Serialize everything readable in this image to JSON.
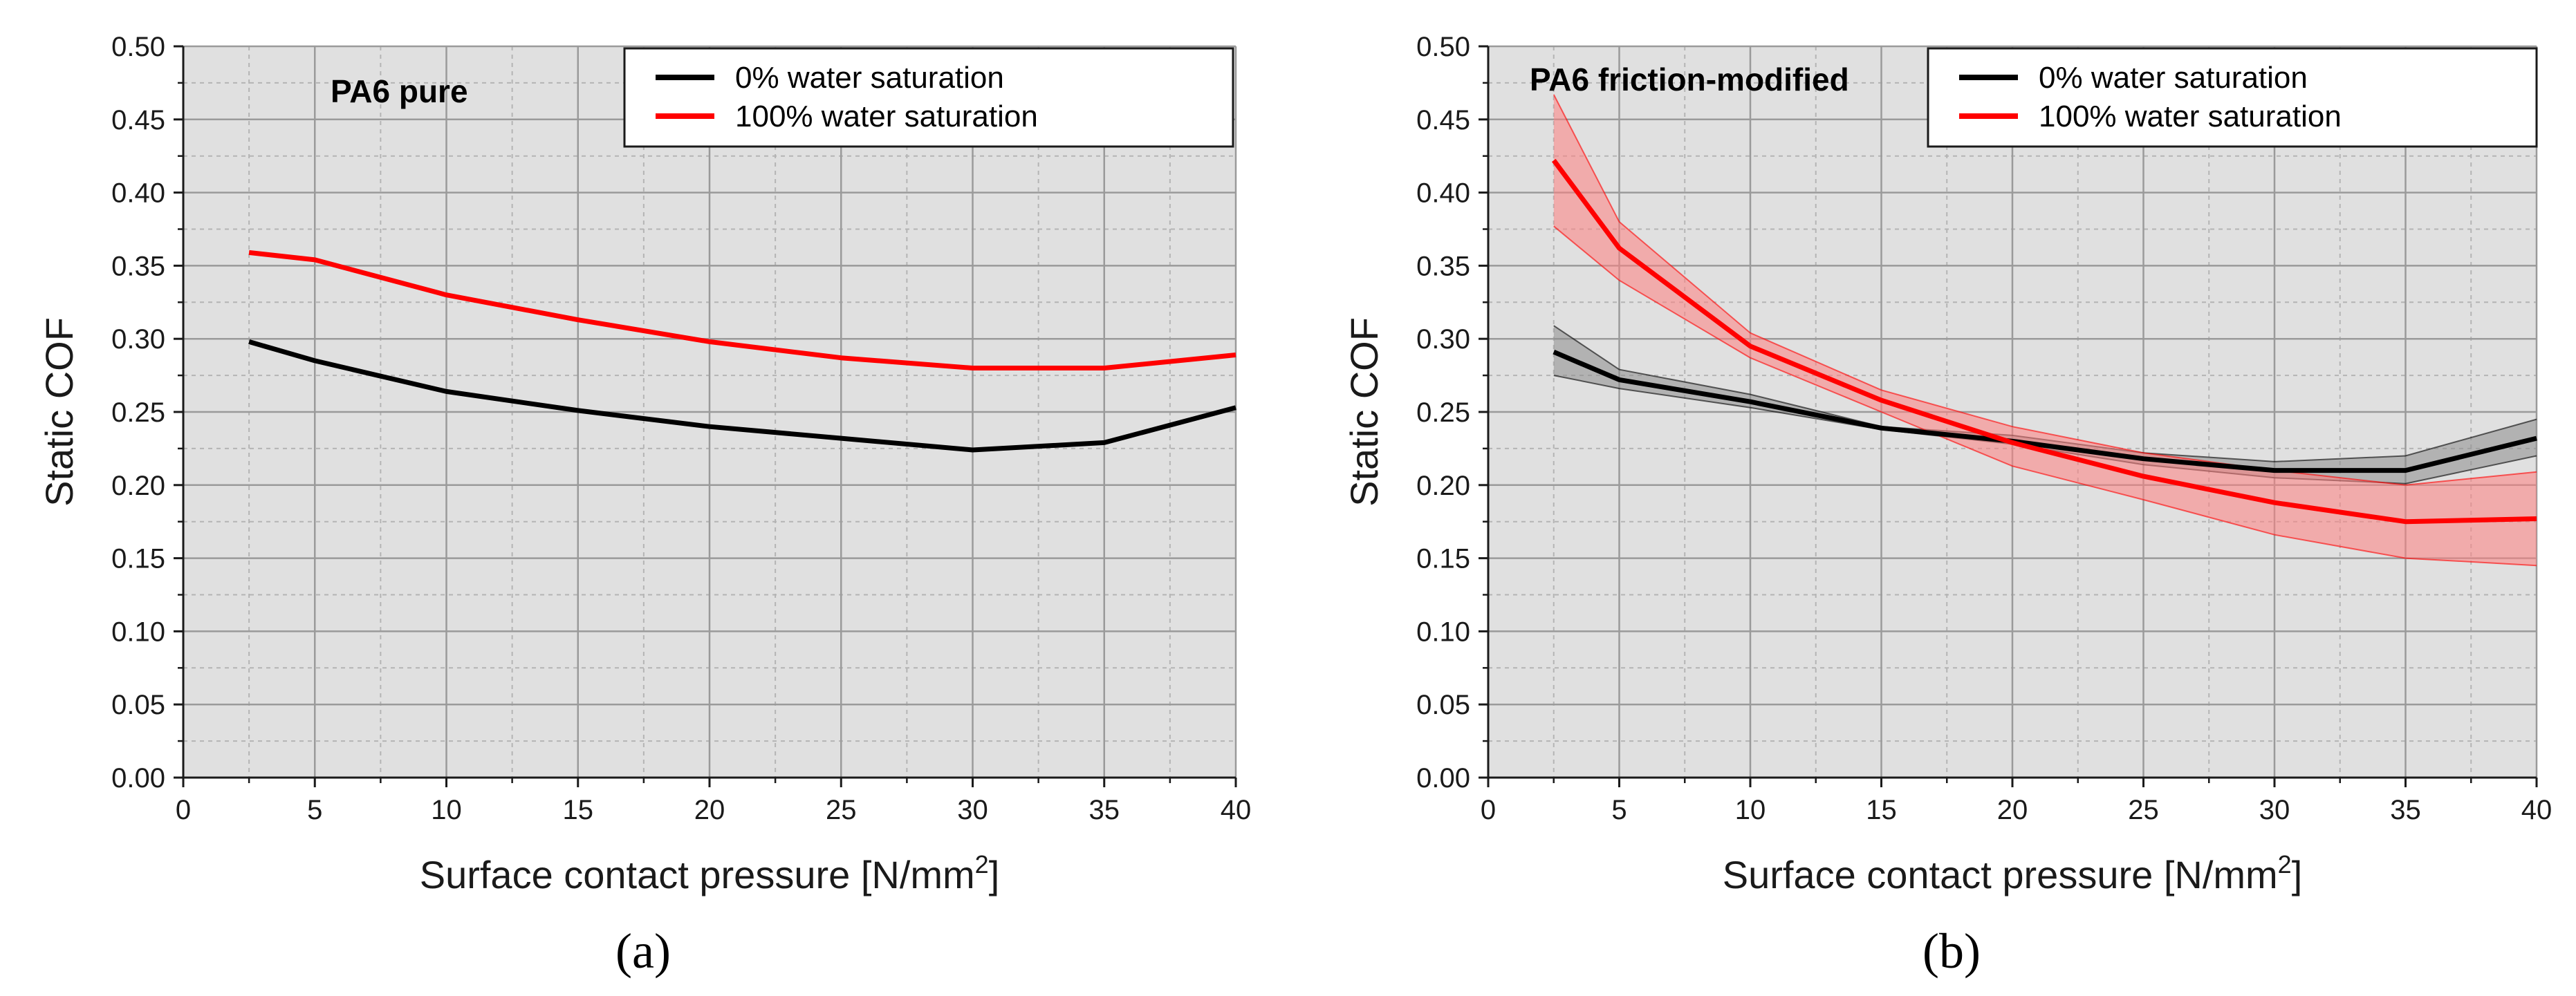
{
  "chart_data": [
    {
      "type": "line",
      "panel_label": "(a)",
      "title": "PA6 pure",
      "xlabel": "Surface contact pressure [N/mm",
      "xlabel_sup": "2",
      "xlabel_end": "]",
      "ylabel": "Static COF",
      "xlim": [
        0,
        40
      ],
      "ylim": [
        0,
        0.5
      ],
      "x_ticks": [
        0,
        5,
        10,
        15,
        20,
        25,
        30,
        35,
        40
      ],
      "x_tick_labels": [
        "0",
        "5",
        "10",
        "15",
        "20",
        "25",
        "30",
        "35",
        "40"
      ],
      "y_ticks": [
        0,
        0.05,
        0.1,
        0.15,
        0.2,
        0.25,
        0.3,
        0.35,
        0.4,
        0.45,
        0.5
      ],
      "y_tick_labels": [
        "0.00",
        "0.05",
        "0.10",
        "0.15",
        "0.20",
        "0.25",
        "0.30",
        "0.35",
        "0.40",
        "0.45",
        "0.50"
      ],
      "grid": true,
      "legend_position": "top-right",
      "x": [
        2.5,
        5,
        10,
        15,
        20,
        25,
        30,
        35,
        40
      ],
      "series": [
        {
          "name": "0% water saturation",
          "color": "#000000",
          "values": [
            0.298,
            0.285,
            0.264,
            0.251,
            0.24,
            0.232,
            0.224,
            0.229,
            0.253
          ]
        },
        {
          "name": "100% water saturation",
          "color": "#ff0000",
          "values": [
            0.359,
            0.354,
            0.33,
            0.313,
            0.298,
            0.287,
            0.28,
            0.28,
            0.289
          ]
        }
      ]
    },
    {
      "type": "line",
      "panel_label": "(b)",
      "title": "PA6 friction-modified",
      "xlabel": "Surface contact pressure [N/mm",
      "xlabel_sup": "2",
      "xlabel_end": "]",
      "ylabel": "Static COF",
      "xlim": [
        0,
        40
      ],
      "ylim": [
        0,
        0.5
      ],
      "x_ticks": [
        0,
        5,
        10,
        15,
        20,
        25,
        30,
        35,
        40
      ],
      "x_tick_labels": [
        "0",
        "5",
        "10",
        "15",
        "20",
        "25",
        "30",
        "35",
        "40"
      ],
      "y_ticks": [
        0,
        0.05,
        0.1,
        0.15,
        0.2,
        0.25,
        0.3,
        0.35,
        0.4,
        0.45,
        0.5
      ],
      "y_tick_labels": [
        "0.00",
        "0.05",
        "0.10",
        "0.15",
        "0.20",
        "0.25",
        "0.30",
        "0.35",
        "0.40",
        "0.45",
        "0.50"
      ],
      "grid": true,
      "legend_position": "top-right",
      "x": [
        2.5,
        5,
        10,
        15,
        20,
        25,
        30,
        35,
        40
      ],
      "series": [
        {
          "name": "0% water saturation",
          "color": "#000000",
          "band_color": "#8c8c8c",
          "values": [
            0.291,
            0.272,
            0.257,
            0.239,
            0.23,
            0.218,
            0.21,
            0.21,
            0.232
          ],
          "lower": [
            0.275,
            0.266,
            0.253,
            0.238,
            0.228,
            0.214,
            0.205,
            0.201,
            0.22
          ],
          "upper": [
            0.309,
            0.279,
            0.262,
            0.24,
            0.234,
            0.222,
            0.216,
            0.22,
            0.245
          ]
        },
        {
          "name": "100% water saturation",
          "color": "#ff0000",
          "band_color": "#ff7f7f",
          "values": [
            0.422,
            0.362,
            0.295,
            0.258,
            0.229,
            0.206,
            0.188,
            0.175,
            0.177
          ],
          "lower": [
            0.377,
            0.34,
            0.287,
            0.25,
            0.213,
            0.19,
            0.166,
            0.15,
            0.145
          ],
          "upper": [
            0.467,
            0.38,
            0.304,
            0.265,
            0.24,
            0.222,
            0.21,
            0.2,
            0.209
          ]
        }
      ]
    }
  ]
}
